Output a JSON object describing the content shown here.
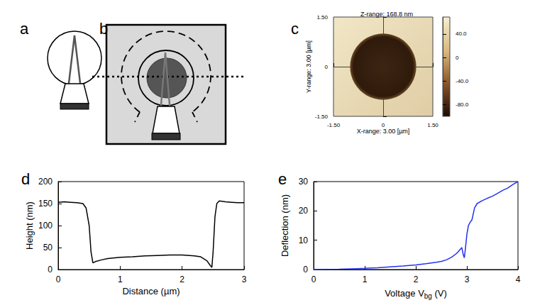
{
  "panel_labels": [
    "a",
    "b",
    "c",
    "d",
    "e"
  ],
  "image": {
    "panel": "c",
    "title": "Z-range: 168.8 nm",
    "xlabel": "X-range: 3.00 [µm]",
    "ylabel": "Y-range: 3.00 [µm]",
    "xlim": [
      -1.5,
      1.5
    ],
    "xticks": [
      {
        "value": -1.5,
        "label": "-1.50"
      },
      0,
      {
        "value": 1.5,
        "label": "1.50"
      }
    ],
    "ylim": [
      -1.5,
      1.5
    ],
    "yticks": [
      {
        "value": -1.5,
        "label": "-1.50"
      },
      0,
      {
        "value": 1.5,
        "label": "1.50"
      }
    ],
    "hole": {
      "center": [
        0,
        0
      ],
      "diameter": 2.0
    },
    "colorbar": {
      "range": [
        -100,
        68.8
      ],
      "ticks": [
        {
          "value": 40,
          "label": "40.0"
        },
        0,
        {
          "value": -40,
          "label": "-40.0"
        },
        {
          "value": -80,
          "label": "-80.0"
        }
      ]
    }
  },
  "chart_data": [
    {
      "panel": "d",
      "type": "line",
      "xlabel": "Distance (µm)",
      "ylabel": "Height (nm)",
      "x": [
        0,
        0.1,
        0.2,
        0.3,
        0.4,
        0.45,
        0.5,
        0.53,
        0.56,
        0.6,
        0.7,
        0.8,
        1.0,
        1.2,
        1.4,
        1.6,
        1.8,
        2.0,
        2.2,
        2.3,
        2.4,
        2.45,
        2.48,
        2.5,
        2.53,
        2.56,
        2.6,
        2.7,
        2.8,
        2.9,
        3.0
      ],
      "values": [
        153,
        154,
        153,
        152,
        150,
        140,
        100,
        40,
        15,
        18,
        22,
        25,
        28,
        29,
        31,
        32,
        33,
        33,
        31,
        29,
        20,
        10,
        5,
        40,
        120,
        150,
        156,
        154,
        153,
        152,
        152
      ],
      "color": "#000000",
      "xlim": [
        0,
        3
      ],
      "xticks": [
        0,
        1,
        2,
        3
      ],
      "ylim": [
        0,
        200
      ],
      "yticks": [
        0,
        50,
        100,
        150,
        200
      ],
      "grid": false
    },
    {
      "panel": "e",
      "type": "line",
      "xlabel": "Voltage Vbg (V)",
      "xlabel_subscript": "bg",
      "ylabel": "Deflection (nm)",
      "x": [
        0,
        0.25,
        0.5,
        0.75,
        1.0,
        1.25,
        1.5,
        1.75,
        2.0,
        2.2,
        2.4,
        2.5,
        2.6,
        2.7,
        2.8,
        2.85,
        2.9,
        2.93,
        2.95,
        2.97,
        3.0,
        3.03,
        3.06,
        3.1,
        3.15,
        3.2,
        3.3,
        3.4,
        3.5,
        3.6,
        3.7,
        3.8,
        3.9,
        4.0
      ],
      "values": [
        0,
        0.05,
        0.1,
        0.25,
        0.4,
        0.6,
        0.9,
        1.2,
        1.6,
        2.0,
        2.5,
        2.8,
        3.3,
        4.2,
        5.5,
        6.5,
        7.5,
        5.0,
        4.0,
        7.0,
        12.0,
        15.0,
        16.0,
        17.0,
        21.0,
        22.5,
        23.5,
        24.3,
        25.0,
        26.0,
        27.0,
        27.8,
        29.0,
        30.0
      ],
      "color": "#2233ee",
      "xlim": [
        0,
        4
      ],
      "xticks": [
        0,
        1,
        2,
        3,
        4
      ],
      "ylim": [
        0,
        30
      ],
      "yticks": [
        0,
        10,
        20,
        30
      ],
      "grid": false
    }
  ]
}
